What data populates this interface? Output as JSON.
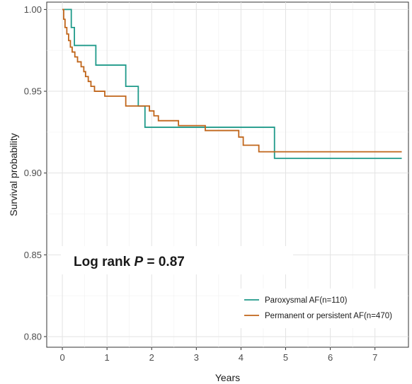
{
  "chart_data": {
    "type": "line",
    "step": true,
    "xlabel": "Years",
    "ylabel": "Survival probability",
    "xlim": [
      -0.35,
      7.75
    ],
    "ylim": [
      0.7935,
      1.0045
    ],
    "x_ticks": [
      0,
      1,
      2,
      3,
      4,
      5,
      6,
      7
    ],
    "x_tick_labels": [
      "0",
      "1",
      "2",
      "3",
      "4",
      "5",
      "6",
      "7"
    ],
    "y_ticks": [
      0.8,
      0.85,
      0.9,
      0.95,
      1.0
    ],
    "y_tick_labels": [
      "0.80",
      "0.85",
      "0.90",
      "0.95",
      "1.00"
    ],
    "grid": true,
    "legend_position": "bottom-right",
    "annotation": {
      "prefix": "Log rank ",
      "stat": "P",
      "suffix": " = 0.87"
    },
    "series": [
      {
        "name": "Paroxysmal AF(n=110)",
        "color": "#1f9a8a",
        "x": [
          0,
          0.2,
          0.27,
          0.75,
          1.42,
          1.7,
          1.85,
          4.75,
          7.6
        ],
        "y": [
          1.0,
          0.989,
          0.978,
          0.966,
          0.953,
          0.941,
          0.928,
          0.909,
          0.909
        ]
      },
      {
        "name": "Permanent or persistent AF(n=470)",
        "color": "#c0651a",
        "x": [
          0,
          0.03,
          0.06,
          0.1,
          0.14,
          0.18,
          0.22,
          0.28,
          0.34,
          0.42,
          0.48,
          0.52,
          0.58,
          0.64,
          0.72,
          0.95,
          1.42,
          1.95,
          2.05,
          2.15,
          2.6,
          3.2,
          3.95,
          4.05,
          4.4,
          7.6
        ],
        "y": [
          1.0,
          0.994,
          0.989,
          0.985,
          0.981,
          0.977,
          0.974,
          0.971,
          0.968,
          0.965,
          0.962,
          0.959,
          0.956,
          0.953,
          0.95,
          0.947,
          0.941,
          0.938,
          0.935,
          0.932,
          0.929,
          0.926,
          0.922,
          0.917,
          0.913,
          0.913
        ]
      }
    ]
  }
}
